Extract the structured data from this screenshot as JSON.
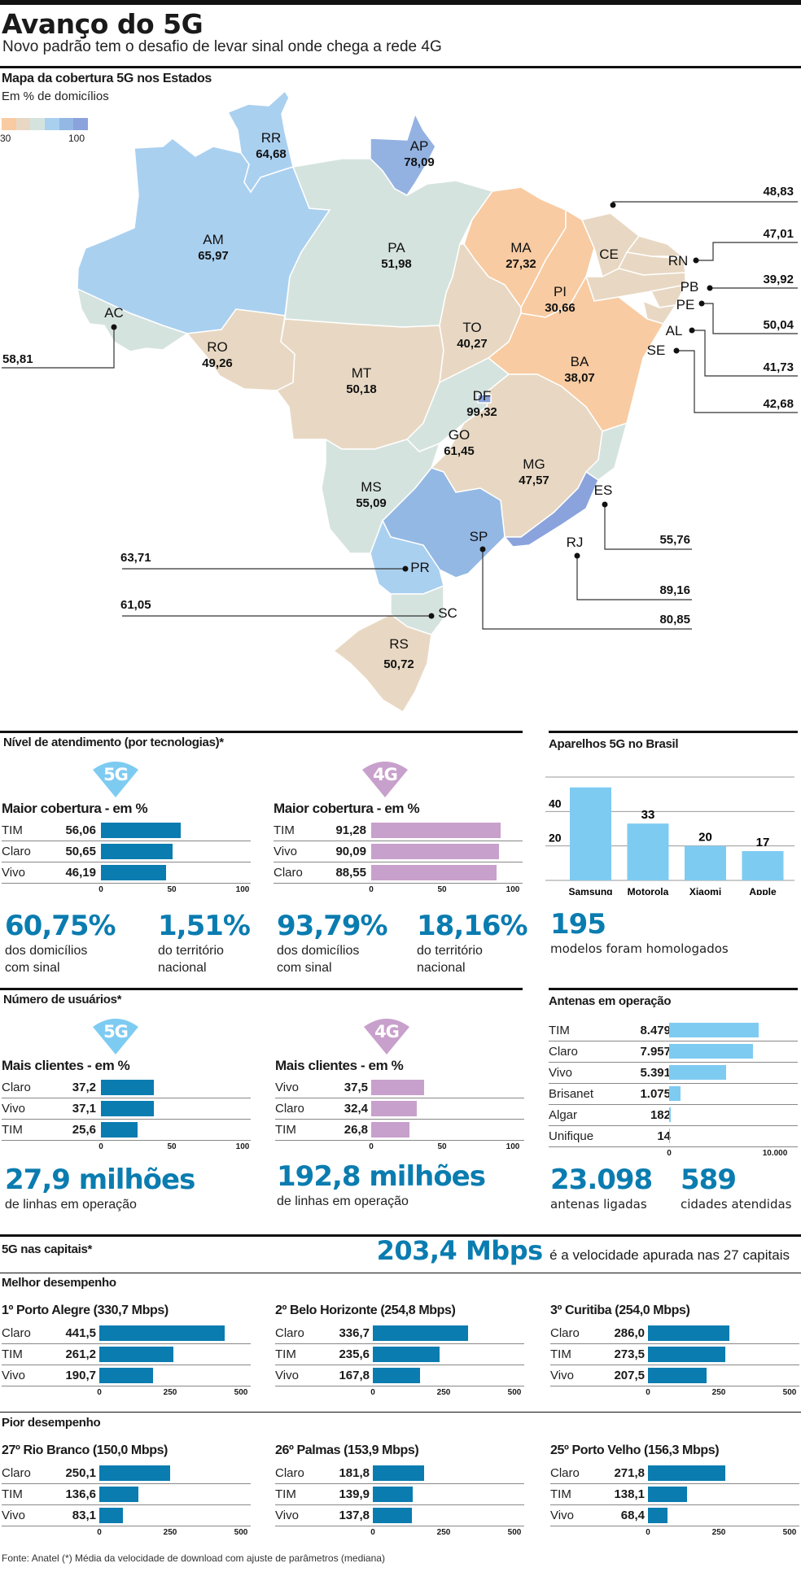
{
  "header": {
    "title": "Avanço do 5G",
    "subtitle": "Novo padrão tem o desafio de levar sinal onde chega a rede 4G"
  },
  "map": {
    "title": "Mapa da cobertura 5G nos Estados",
    "subtitle": "Em % de domicílios",
    "legend": {
      "min_label": "30",
      "max_label": "100",
      "colors": [
        "#f8cba2",
        "#e8d8c3",
        "#d5e3df",
        "#aad0f0",
        "#93b8e4",
        "#8aa3dc"
      ]
    },
    "states": [
      {
        "uf": "RR",
        "value": "64,68",
        "color": "#aad0f0"
      },
      {
        "uf": "AP",
        "value": "78,09",
        "color": "#93b2e2"
      },
      {
        "uf": "AM",
        "value": "65,97",
        "color": "#aad0f0"
      },
      {
        "uf": "PA",
        "value": "51,98",
        "color": "#d5e3df"
      },
      {
        "uf": "AC",
        "value": "58,81",
        "color": "#d5e3df"
      },
      {
        "uf": "RO",
        "value": "49,26",
        "color": "#e8d8c3"
      },
      {
        "uf": "MT",
        "value": "50,18",
        "color": "#e8d8c3"
      },
      {
        "uf": "MA",
        "value": "27,32",
        "color": "#f8cba2"
      },
      {
        "uf": "PI",
        "value": "30,66",
        "color": "#f8cba2"
      },
      {
        "uf": "CE",
        "value": "48,83",
        "color": "#e8d8c3"
      },
      {
        "uf": "RN",
        "value": "47,01",
        "color": "#e8d8c3"
      },
      {
        "uf": "PB",
        "value": "39,92",
        "color": "#e8d8c3"
      },
      {
        "uf": "PE",
        "value": "50,04",
        "color": "#e8d8c3"
      },
      {
        "uf": "AL",
        "value": "41,73",
        "color": "#e8d8c3"
      },
      {
        "uf": "SE",
        "value": "42,68",
        "color": "#e8d8c3"
      },
      {
        "uf": "TO",
        "value": "40,27",
        "color": "#e8d8c3"
      },
      {
        "uf": "BA",
        "value": "38,07",
        "color": "#f8cba2"
      },
      {
        "uf": "DF",
        "value": "99,32",
        "color": "#8aa3dc"
      },
      {
        "uf": "GO",
        "value": "61,45",
        "color": "#d5e3df"
      },
      {
        "uf": "MG",
        "value": "47,57",
        "color": "#e8d8c3"
      },
      {
        "uf": "MS",
        "value": "55,09",
        "color": "#d5e3df"
      },
      {
        "uf": "ES",
        "value": "55,76",
        "color": "#d5e3df"
      },
      {
        "uf": "SP",
        "value": "80,85",
        "color": "#93b8e4"
      },
      {
        "uf": "RJ",
        "value": "89,16",
        "color": "#8aa3dc"
      },
      {
        "uf": "PR",
        "value": "63,71",
        "color": "#aad0f0"
      },
      {
        "uf": "SC",
        "value": "61,05",
        "color": "#d5e3df"
      },
      {
        "uf": "RS",
        "value": "50,72",
        "color": "#e8d8c3"
      }
    ]
  },
  "atendimento": {
    "title": "Nível de atendimento (por tecnologias)*",
    "g5": {
      "badge": "5G",
      "chart_title": "Maior cobertura - em  %",
      "rows": [
        {
          "label": "TIM",
          "value_text": "56,06",
          "value": 56.06
        },
        {
          "label": "Claro",
          "value_text": "50,65",
          "value": 50.65
        },
        {
          "label": "Vivo",
          "value_text": "46,19",
          "value": 46.19
        }
      ],
      "axis": [
        "0",
        "50",
        "100"
      ],
      "stats": [
        {
          "number": "60,75%",
          "caption1": "dos domicílios",
          "caption2": "com sinal"
        },
        {
          "number": "1,51%",
          "caption1": "do território",
          "caption2": "nacional"
        }
      ]
    },
    "g4": {
      "badge": "4G",
      "chart_title": "Maior cobertura - em  %",
      "rows": [
        {
          "label": "TIM",
          "value_text": "91,28",
          "value": 91.28
        },
        {
          "label": "Vivo",
          "value_text": "90,09",
          "value": 90.09
        },
        {
          "label": "Claro",
          "value_text": "88,55",
          "value": 88.55
        }
      ],
      "axis": [
        "0",
        "50",
        "100"
      ],
      "stats": [
        {
          "number": "93,79%",
          "caption1": "dos domicílios",
          "caption2": "com sinal"
        },
        {
          "number": "18,16%",
          "caption1": "do território",
          "caption2": "nacional"
        }
      ]
    }
  },
  "aparelhos": {
    "title": "Aparelhos 5G no Brasil",
    "stat_number": "195",
    "stat_caption": "modelos foram homologados"
  },
  "usuarios": {
    "title": "Número de usuários*",
    "g5": {
      "badge": "5G",
      "chart_title": "Mais clientes - em  %",
      "rows": [
        {
          "label": "Claro",
          "value_text": "37,2",
          "value": 37.2
        },
        {
          "label": "Vivo",
          "value_text": "37,1",
          "value": 37.1
        },
        {
          "label": "TIM",
          "value_text": "25,6",
          "value": 25.6
        }
      ],
      "axis": [
        "0",
        "50",
        "100"
      ],
      "stat_number": "27,9 milhões",
      "stat_caption": "de linhas em operação"
    },
    "g4": {
      "badge": "4G",
      "chart_title": "Mais clientes - em  %",
      "rows": [
        {
          "label": "Vivo",
          "value_text": "37,5",
          "value": 37.5
        },
        {
          "label": "Claro",
          "value_text": "32,4",
          "value": 32.4
        },
        {
          "label": "TIM",
          "value_text": "26,8",
          "value": 26.8
        }
      ],
      "axis": [
        "0",
        "50",
        "100"
      ],
      "stat_number": "192,8 milhões",
      "stat_caption": "de linhas em operação"
    }
  },
  "antenas": {
    "title": "Antenas em operação",
    "rows": [
      {
        "label": "TIM",
        "value_text": "8.479",
        "value": 8479
      },
      {
        "label": "Claro",
        "value_text": "7.957",
        "value": 7957
      },
      {
        "label": "Vivo",
        "value_text": "5.391",
        "value": 5391
      },
      {
        "label": "Brisanet",
        "value_text": "1.075",
        "value": 1075
      },
      {
        "label": "Algar",
        "value_text": "182",
        "value": 182
      },
      {
        "label": "Unifique",
        "value_text": "14",
        "value": 14
      }
    ],
    "axis": [
      "0",
      "10.000"
    ],
    "stats": [
      {
        "number": "23.098",
        "caption": "antenas ligadas"
      },
      {
        "number": "589",
        "caption": "cidades atendidas"
      }
    ]
  },
  "capitais": {
    "title": "5G nas capitais*",
    "headline_number": "203,4 Mbps",
    "headline_text": "é a velocidade apurada nas 27 capitais",
    "best_title": "Melhor desempenho",
    "worst_title": "Pior desempenho",
    "axis": [
      "0",
      "250",
      "500"
    ],
    "best": [
      {
        "title": "1º Porto Alegre (330,7 Mbps)",
        "rows": [
          {
            "label": "Claro",
            "value_text": "441,5",
            "value": 441.5
          },
          {
            "label": "TIM",
            "value_text": "261,2",
            "value": 261.2
          },
          {
            "label": "Vivo",
            "value_text": "190,7",
            "value": 190.7
          }
        ]
      },
      {
        "title": "2º Belo Horizonte (254,8 Mbps)",
        "rows": [
          {
            "label": "Claro",
            "value_text": "336,7",
            "value": 336.7
          },
          {
            "label": "TIM",
            "value_text": "235,6",
            "value": 235.6
          },
          {
            "label": "Vivo",
            "value_text": "167,8",
            "value": 167.8
          }
        ]
      },
      {
        "title": "3º Curitiba (254,0 Mbps)",
        "rows": [
          {
            "label": "Claro",
            "value_text": "286,0",
            "value": 286.0
          },
          {
            "label": "TIM",
            "value_text": "273,5",
            "value": 273.5
          },
          {
            "label": "Vivo",
            "value_text": "207,5",
            "value": 207.5
          }
        ]
      }
    ],
    "worst": [
      {
        "title": "27º Rio Branco (150,0 Mbps)",
        "rows": [
          {
            "label": "Claro",
            "value_text": "250,1",
            "value": 250.1
          },
          {
            "label": "TIM",
            "value_text": "136,6",
            "value": 136.6
          },
          {
            "label": "Vivo",
            "value_text": "83,1",
            "value": 83.1
          }
        ]
      },
      {
        "title": "26º Palmas (153,9 Mbps)",
        "rows": [
          {
            "label": "Claro",
            "value_text": "181,8",
            "value": 181.8
          },
          {
            "label": "TIM",
            "value_text": "139,9",
            "value": 139.9
          },
          {
            "label": "Vivo",
            "value_text": "137,8",
            "value": 137.8
          }
        ]
      },
      {
        "title": "25º Porto Velho (156,3 Mbps)",
        "rows": [
          {
            "label": "Claro",
            "value_text": "271,8",
            "value": 271.8
          },
          {
            "label": "TIM",
            "value_text": "138,1",
            "value": 138.1
          },
          {
            "label": "Vivo",
            "value_text": "68,4",
            "value": 68.4
          }
        ]
      }
    ]
  },
  "footer": {
    "source": "Fonte: Anatel (*) Média da velocidade de download com ajuste de parâmetros (mediana)"
  },
  "colors": {
    "bar_5g": "#0a7cb0",
    "bar_4g": "#c8a0cc",
    "bar_sky": "#7ecbf2",
    "badge_5g": "#7ecbf2",
    "badge_4g": "#c8a0cc",
    "accent_number": "#0a7cb0"
  },
  "chart_data": [
    {
      "type": "heatmap",
      "title": "Mapa da cobertura 5G nos Estados",
      "subtitle": "Em % de domicílios",
      "legend": {
        "min": 30,
        "max": 100
      },
      "categories": [
        "RR",
        "AP",
        "AM",
        "PA",
        "AC",
        "RO",
        "MT",
        "MA",
        "PI",
        "CE",
        "RN",
        "PB",
        "PE",
        "AL",
        "SE",
        "TO",
        "BA",
        "DF",
        "GO",
        "MG",
        "MS",
        "ES",
        "SP",
        "RJ",
        "PR",
        "SC",
        "RS"
      ],
      "values": [
        64.68,
        78.09,
        65.97,
        51.98,
        58.81,
        49.26,
        50.18,
        27.32,
        30.66,
        48.83,
        47.01,
        39.92,
        50.04,
        41.73,
        42.68,
        40.27,
        38.07,
        99.32,
        61.45,
        47.57,
        55.09,
        55.76,
        80.85,
        89.16,
        63.71,
        61.05,
        50.72
      ]
    },
    {
      "type": "bar",
      "title": "Aparelhos 5G no Brasil",
      "categories": [
        "Samsung",
        "Motorola",
        "Xiaomi",
        "Apple"
      ],
      "values": [
        54,
        33,
        20,
        17
      ],
      "value_labels": [
        "",
        "33",
        "20",
        "17"
      ],
      "yticks": [
        "20",
        "40",
        "60"
      ],
      "ylim": [
        0,
        60
      ],
      "grid": true,
      "xlabel": "",
      "ylabel": ""
    },
    {
      "type": "bar",
      "title": "Maior cobertura 5G - em %",
      "orientation": "horizontal",
      "categories": [
        "TIM",
        "Claro",
        "Vivo"
      ],
      "values": [
        56.06,
        50.65,
        46.19
      ],
      "xlim": [
        0,
        100
      ]
    },
    {
      "type": "bar",
      "title": "Maior cobertura 4G - em %",
      "orientation": "horizontal",
      "categories": [
        "TIM",
        "Vivo",
        "Claro"
      ],
      "values": [
        91.28,
        90.09,
        88.55
      ],
      "xlim": [
        0,
        100
      ]
    },
    {
      "type": "bar",
      "title": "Mais clientes 5G - em %",
      "orientation": "horizontal",
      "categories": [
        "Claro",
        "Vivo",
        "TIM"
      ],
      "values": [
        37.2,
        37.1,
        25.6
      ],
      "xlim": [
        0,
        100
      ]
    },
    {
      "type": "bar",
      "title": "Mais clientes 4G - em %",
      "orientation": "horizontal",
      "categories": [
        "Vivo",
        "Claro",
        "TIM"
      ],
      "values": [
        37.5,
        32.4,
        26.8
      ],
      "xlim": [
        0,
        100
      ]
    },
    {
      "type": "bar",
      "title": "Antenas em operação",
      "orientation": "horizontal",
      "categories": [
        "TIM",
        "Claro",
        "Vivo",
        "Brisanet",
        "Algar",
        "Unifique"
      ],
      "values": [
        8479,
        7957,
        5391,
        1075,
        182,
        14
      ],
      "xlim": [
        0,
        10000
      ]
    },
    {
      "type": "bar",
      "title": "5G nas capitais (Mbps)",
      "orientation": "horizontal",
      "categories": [
        "Claro",
        "TIM",
        "Vivo"
      ],
      "series": [
        {
          "name": "1º Porto Alegre (330,7 Mbps)",
          "values": [
            441.5,
            261.2,
            190.7
          ]
        },
        {
          "name": "2º Belo Horizonte (254,8 Mbps)",
          "values": [
            336.7,
            235.6,
            167.8
          ]
        },
        {
          "name": "3º Curitiba (254,0 Mbps)",
          "values": [
            286.0,
            273.5,
            207.5
          ]
        },
        {
          "name": "27º Rio Branco (150,0 Mbps)",
          "values": [
            250.1,
            136.6,
            83.1
          ]
        },
        {
          "name": "26º Palmas (153,9 Mbps)",
          "values": [
            181.8,
            139.9,
            137.8
          ]
        },
        {
          "name": "25º Porto Velho (156,3 Mbps)",
          "values": [
            271.8,
            138.1,
            68.4
          ]
        }
      ],
      "xlim": [
        0,
        500
      ]
    }
  ]
}
